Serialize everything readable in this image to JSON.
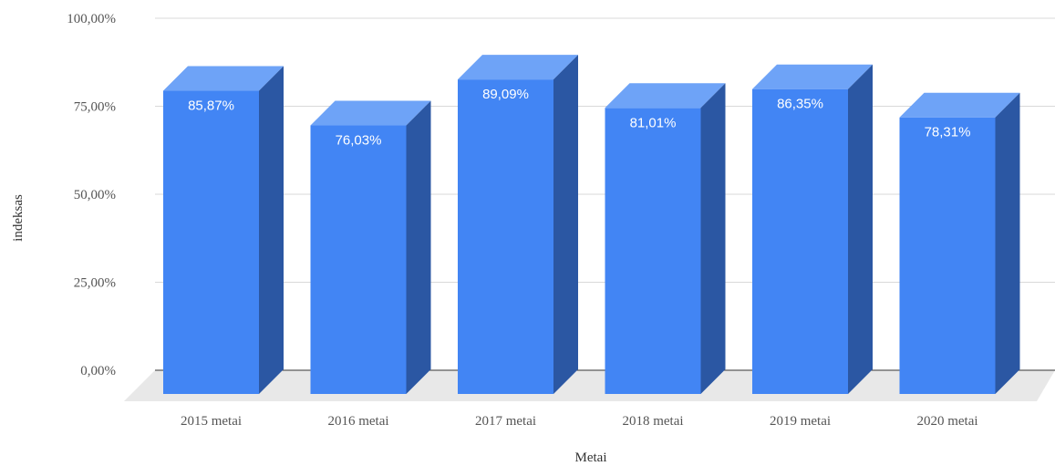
{
  "chart_data": {
    "type": "bar",
    "style": "3d",
    "categories": [
      "2015 metai",
      "2016 metai",
      "2017 metai",
      "2018 metai",
      "2019 metai",
      "2020 metai"
    ],
    "values": [
      85.87,
      76.03,
      89.09,
      81.01,
      86.35,
      78.31
    ],
    "data_labels": [
      "85,87%",
      "76,03%",
      "89,09%",
      "81,01%",
      "86,35%",
      "78,31%"
    ],
    "xlabel": "Metai",
    "ylabel": "indeksas",
    "ylim": [
      0,
      100
    ],
    "yticks": [
      0,
      25,
      50,
      75,
      100
    ],
    "ytick_labels": [
      "0,00%",
      "25,00%",
      "50,00%",
      "75,00%",
      "100,00%"
    ],
    "grid": true,
    "legend": "none",
    "colors": {
      "bar_front": "#4285f4",
      "bar_top": "#6ea3f7",
      "bar_side": "#2b57a3",
      "floor": "#e8e8e8"
    }
  }
}
